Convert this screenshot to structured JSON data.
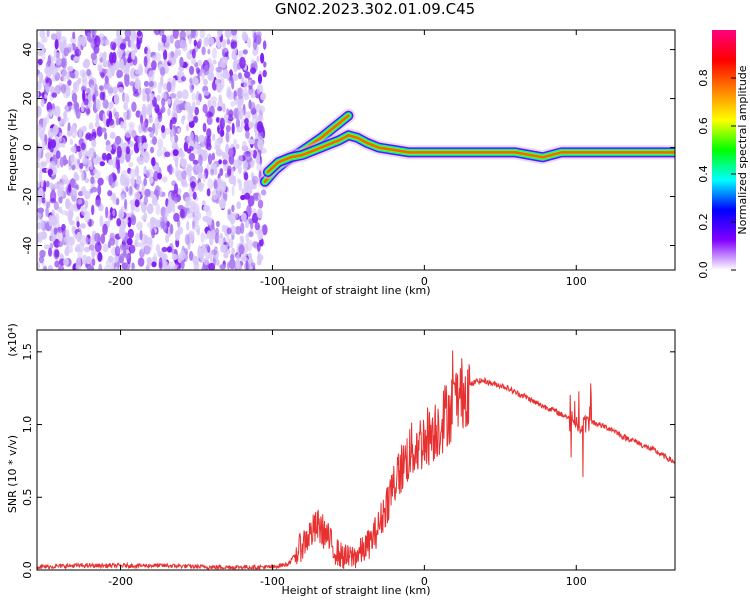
{
  "page_title": "GN02.2023.302.01.09.C45",
  "chart_data": [
    {
      "type": "heatmap",
      "title": "GN02.2023.302.01.09.C45",
      "xlabel": "Height of straight line (km)",
      "ylabel": "Frequency (Hz)",
      "xlim": [
        -255,
        165
      ],
      "ylim": [
        -50,
        48
      ],
      "x_ticks": [
        -200,
        -100,
        0,
        100
      ],
      "y_ticks": [
        -40,
        -20,
        0,
        20,
        40
      ],
      "grid": false,
      "noise_region_x": [
        -255,
        -105
      ],
      "ridges": [
        {
          "points": [
            [
              -105,
              -14
            ],
            [
              -98,
              -9
            ],
            [
              -90,
              -5
            ],
            [
              -82,
              -2
            ],
            [
              -75,
              1
            ],
            [
              -68,
              4
            ],
            [
              -62,
              7
            ],
            [
              -56,
              10
            ],
            [
              -50,
              13
            ]
          ]
        },
        {
          "points": [
            [
              -103,
              -10
            ],
            [
              -96,
              -6
            ],
            [
              -88,
              -4
            ],
            [
              -80,
              -3
            ],
            [
              -72,
              -1
            ],
            [
              -64,
              1
            ],
            [
              -56,
              3
            ],
            [
              -50,
              5
            ],
            [
              -44,
              4
            ],
            [
              -38,
              2
            ],
            [
              -30,
              0
            ],
            [
              -20,
              -1
            ],
            [
              -10,
              -2
            ],
            [
              0,
              -2
            ],
            [
              20,
              -2
            ],
            [
              40,
              -2
            ],
            [
              60,
              -2
            ],
            [
              78,
              -4
            ],
            [
              90,
              -2
            ],
            [
              100,
              -2
            ],
            [
              115,
              -2
            ],
            [
              130,
              -2
            ],
            [
              150,
              -2
            ],
            [
              165,
              -2
            ]
          ]
        }
      ],
      "colorbar": {
        "label": "Normalized spectral amplitude",
        "range": [
          0,
          1
        ],
        "ticks": [
          0.0,
          0.2,
          0.4,
          0.6,
          0.8
        ],
        "tick_labels": [
          "0.0",
          "0.2",
          "0.4",
          "0.6",
          "0.8"
        ],
        "colors": [
          "#ffffff",
          "#8000ff",
          "#0000ff",
          "#00ffff",
          "#00ff00",
          "#ffff00",
          "#ff8000",
          "#ff0000",
          "#ff0080"
        ]
      }
    },
    {
      "type": "line",
      "xlabel": "Height of straight line (km)",
      "ylabel": "SNR (10 * v/v)",
      "y_multiplier": "(x10⁴)",
      "xlim": [
        -255,
        165
      ],
      "ylim": [
        0,
        1.65
      ],
      "x_ticks": [
        -200,
        -100,
        0,
        100
      ],
      "y_ticks": [
        0.0,
        0.5,
        1.0,
        1.5
      ],
      "y_tick_labels": [
        "0.0",
        "0.5",
        "1.0",
        "1.5"
      ],
      "line_color": "#e83030",
      "series": [
        {
          "x": [
            -255,
            -230,
            -200,
            -170,
            -140,
            -110,
            -100,
            -90,
            -85,
            -80,
            -75,
            -70,
            -65,
            -60,
            -55,
            -50,
            -45,
            -40,
            -35,
            -30,
            -25,
            -20,
            -15,
            -10,
            -5,
            0,
            5,
            10,
            15,
            20,
            25,
            30,
            35,
            40,
            45,
            50,
            55,
            60,
            65,
            70,
            75,
            80,
            85,
            90,
            95,
            100,
            103,
            105,
            110,
            115,
            120,
            125,
            130,
            135,
            140,
            145,
            150,
            155,
            160,
            165
          ],
          "y": [
            0.02,
            0.03,
            0.03,
            0.03,
            0.02,
            0.02,
            0.02,
            0.04,
            0.1,
            0.18,
            0.25,
            0.3,
            0.25,
            0.15,
            0.1,
            0.08,
            0.1,
            0.14,
            0.2,
            0.3,
            0.45,
            0.6,
            0.7,
            0.8,
            0.85,
            0.9,
            0.95,
            1.0,
            1.08,
            1.15,
            1.22,
            1.27,
            1.3,
            1.3,
            1.28,
            1.27,
            1.25,
            1.22,
            1.2,
            1.17,
            1.14,
            1.12,
            1.1,
            1.07,
            1.05,
            1.0,
            0.95,
            1.05,
            1.02,
            1.0,
            0.98,
            0.96,
            0.92,
            0.9,
            0.88,
            0.85,
            0.83,
            0.8,
            0.77,
            0.74
          ]
        }
      ]
    }
  ]
}
